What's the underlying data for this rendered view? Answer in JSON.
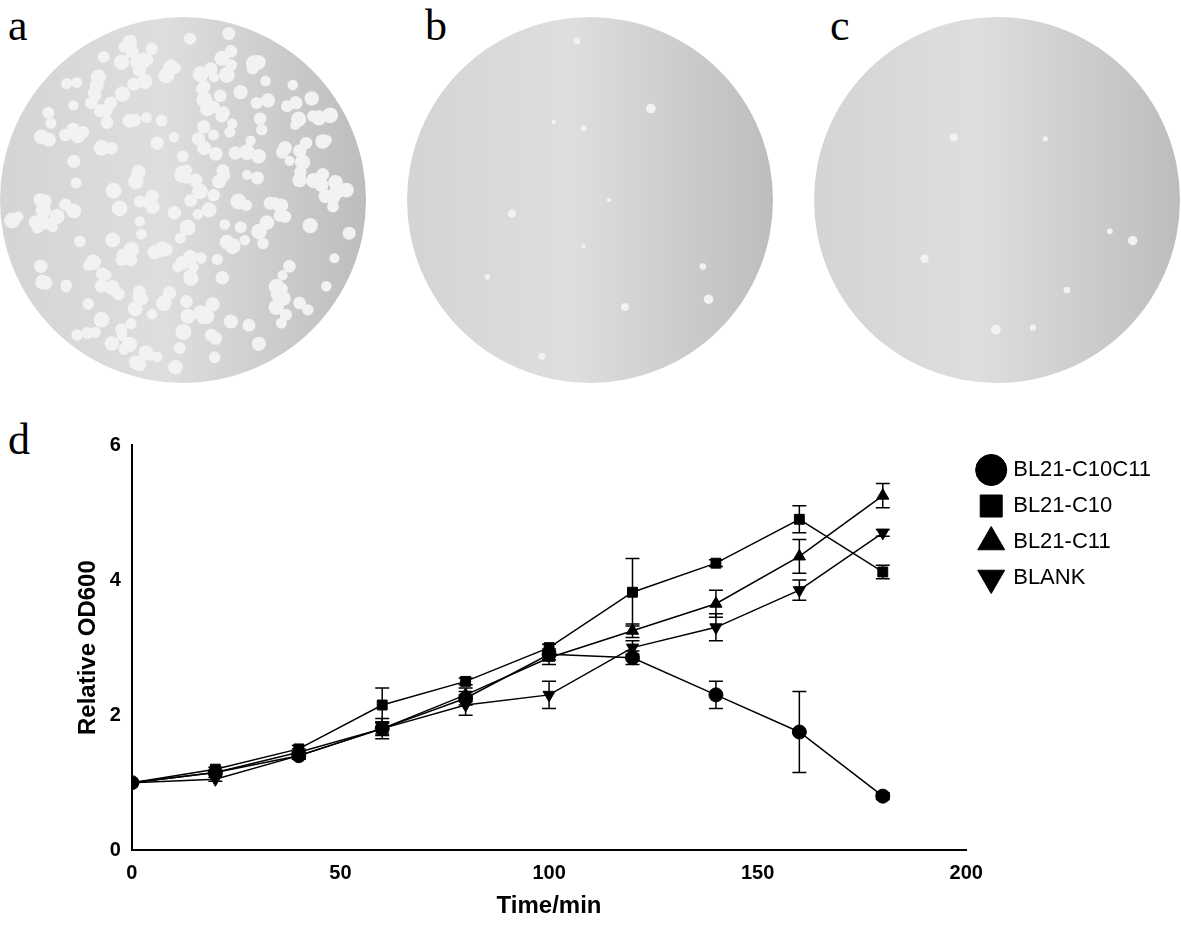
{
  "panels": [
    "a",
    "b",
    "c"
  ],
  "chart_data": {
    "type": "line",
    "title": "d",
    "x_label": "Time/min",
    "y_label": "Relative OD600",
    "x": [
      0,
      20,
      40,
      60,
      80,
      100,
      120,
      140,
      160,
      180
    ],
    "xlim": [
      0,
      200
    ],
    "xticks": [
      0,
      50,
      100,
      150,
      200
    ],
    "ylim": [
      0,
      6
    ],
    "yticks": [
      0,
      2,
      4,
      6
    ],
    "grid": false,
    "legend": "right",
    "series": [
      {
        "name": "BL21-C10C11",
        "color": "#000000",
        "marker": "circle",
        "values": [
          1,
          1.15,
          1.4,
          1.8,
          2.25,
          2.9,
          2.85,
          2.3,
          1.75,
          0.8
        ],
        "errors": [
          0,
          0.03,
          0.05,
          0.08,
          0.1,
          0.08,
          0.1,
          0.2,
          0.6,
          0.05
        ]
      },
      {
        "name": "BL21-C10",
        "color": "#000000",
        "marker": "square",
        "values": [
          1,
          1.2,
          1.5,
          2.15,
          2.5,
          3.0,
          3.82,
          4.25,
          4.9,
          4.12
        ],
        "errors": [
          0,
          0.03,
          0.05,
          0.25,
          0.05,
          0.05,
          0.5,
          0.05,
          0.2,
          0.1
        ]
      },
      {
        "name": "BL21-C11",
        "color": "#000000",
        "marker": "triangle",
        "values": [
          1,
          1.15,
          1.45,
          1.8,
          2.3,
          2.85,
          3.25,
          3.65,
          4.35,
          5.25
        ],
        "errors": [
          0,
          0.03,
          0.05,
          0.1,
          0.1,
          0.1,
          0.1,
          0.2,
          0.25,
          0.18
        ]
      },
      {
        "name": "BLANK",
        "color": "#000000",
        "marker": "triangle_down",
        "values": [
          1,
          1.05,
          1.4,
          1.8,
          2.15,
          2.3,
          3.0,
          3.3,
          3.85,
          4.7
        ],
        "errors": [
          0,
          0.03,
          0.05,
          0.15,
          0.15,
          0.2,
          0.1,
          0.2,
          0.15,
          0.05
        ]
      }
    ]
  }
}
